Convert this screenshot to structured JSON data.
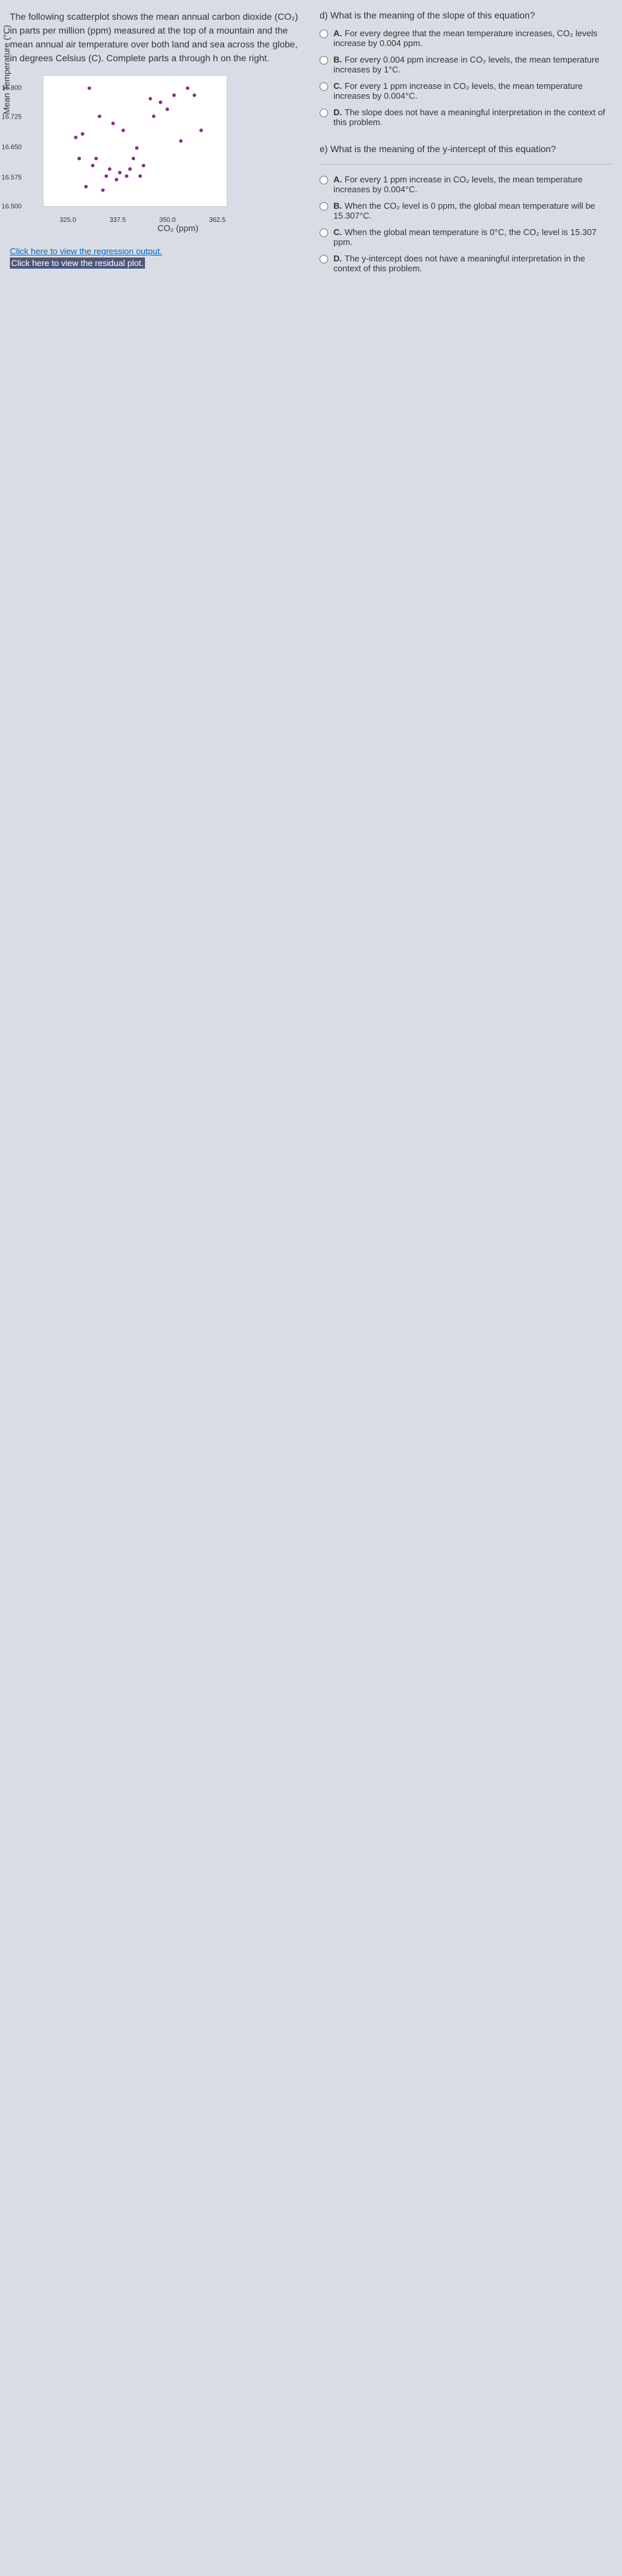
{
  "intro": "The following scatterplot shows the mean annual carbon dioxide (CO₂) in parts per million (ppm) measured at the top of a mountain and the mean annual air temperature over both land and sea across the globe, in degrees Celsius (C). Complete parts a through h on the right.",
  "chart": {
    "y_label": "Mean Temperature (°C)",
    "x_label": "CO₂ (ppm)",
    "y_ticks": [
      "16.800",
      "16.725",
      "16.650",
      "16.575",
      "16.500"
    ],
    "x_ticks": [
      "325.0",
      "337.5",
      "350.0",
      "362.5"
    ],
    "ylim": [
      16.5,
      16.8
    ],
    "xlim": [
      320,
      365
    ],
    "points": [
      [
        325,
        16.66
      ],
      [
        326,
        16.6
      ],
      [
        327,
        16.67
      ],
      [
        328,
        16.52
      ],
      [
        329,
        16.8
      ],
      [
        330,
        16.58
      ],
      [
        331,
        16.6
      ],
      [
        332,
        16.72
      ],
      [
        333,
        16.51
      ],
      [
        334,
        16.55
      ],
      [
        335,
        16.57
      ],
      [
        336,
        16.7
      ],
      [
        337,
        16.54
      ],
      [
        338,
        16.56
      ],
      [
        339,
        16.68
      ],
      [
        340,
        16.55
      ],
      [
        341,
        16.57
      ],
      [
        342,
        16.6
      ],
      [
        343,
        16.63
      ],
      [
        344,
        16.55
      ],
      [
        345,
        16.58
      ],
      [
        347,
        16.77
      ],
      [
        348,
        16.72
      ],
      [
        350,
        16.76
      ],
      [
        352,
        16.74
      ],
      [
        354,
        16.78
      ],
      [
        356,
        16.65
      ],
      [
        358,
        16.8
      ],
      [
        360,
        16.78
      ],
      [
        362,
        16.68
      ]
    ],
    "point_color": "#8b2a8b",
    "bg": "#ffffff"
  },
  "links": {
    "regression": "Click here to view the regression output.",
    "residual": "Click here to view the residual plot."
  },
  "question_d": {
    "prompt": "d) What is the meaning of the slope of this equation?",
    "options": [
      {
        "key": "A.",
        "text": "For every degree that the mean temperature increases, CO₂ levels increase by 0.004 ppm."
      },
      {
        "key": "B.",
        "text": "For every 0.004 ppm increase in CO₂ levels, the mean temperature increases by 1°C."
      },
      {
        "key": "C.",
        "text": "For every 1 ppm increase in CO₂ levels, the mean temperature increases by 0.004°C."
      },
      {
        "key": "D.",
        "text": "The slope does not have a meaningful interpretation in the context of this problem."
      }
    ]
  },
  "question_e": {
    "prompt": "e) What is the meaning of the y-intercept of this equation?",
    "options": [
      {
        "key": "A.",
        "text": "For every 1 ppm increase in CO₂ levels, the mean temperature increases by 0.004°C."
      },
      {
        "key": "B.",
        "text": "When the CO₂ level is 0 ppm, the global mean temperature will be 15.307°C."
      },
      {
        "key": "C.",
        "text": "When the global mean temperature is 0°C, the CO₂ level is 15.307 ppm."
      },
      {
        "key": "D.",
        "text": "The y-intercept does not have a meaningful interpretation in the context of this problem."
      }
    ]
  }
}
